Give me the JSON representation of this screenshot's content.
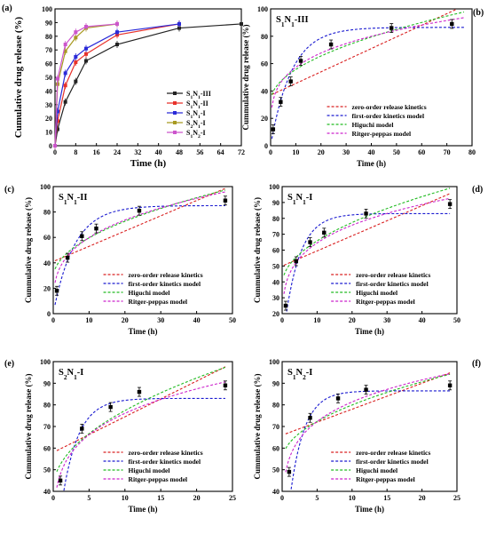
{
  "chart_data": [
    {
      "panel": "(a)",
      "type": "line",
      "title": "",
      "xlabel": "Time (h)",
      "ylabel": "Cumulative drug release (%)",
      "xlim": [
        0,
        72
      ],
      "ylim": [
        0,
        100
      ],
      "xticks": [
        0,
        8,
        16,
        24,
        32,
        40,
        48,
        56,
        64,
        72
      ],
      "yticks": [
        0,
        10,
        20,
        30,
        40,
        50,
        60,
        70,
        80,
        90,
        100
      ],
      "grid": false,
      "legend_position": "bottom-right",
      "series": [
        {
          "name": "S1N1-III",
          "name_main": "S",
          "name_sub1": "1",
          "name_mid": "N",
          "name_sub2": "1",
          "name_tail": "-III",
          "color": "#222222",
          "x": [
            0,
            1,
            4,
            8,
            12,
            24,
            48,
            72
          ],
          "y": [
            0,
            12,
            32,
            47,
            62,
            74,
            86,
            89
          ]
        },
        {
          "name": "S1N1-II",
          "name_main": "S",
          "name_sub1": "1",
          "name_mid": "N",
          "name_sub2": "1",
          "name_tail": "-II",
          "color": "#e8322b",
          "x": [
            0,
            1,
            4,
            8,
            12,
            24,
            48
          ],
          "y": [
            0,
            18,
            44,
            61,
            67,
            81,
            89
          ]
        },
        {
          "name": "S1N1-I",
          "name_main": "S",
          "name_sub1": "1",
          "name_mid": "N",
          "name_sub2": "1",
          "name_tail": "-I",
          "color": "#2a2ad8",
          "x": [
            0,
            1,
            4,
            8,
            12,
            24,
            48
          ],
          "y": [
            0,
            25,
            53,
            65,
            71,
            83,
            89
          ]
        },
        {
          "name": "S2N1-I",
          "name_main": "S",
          "name_sub1": "2",
          "name_mid": "N",
          "name_sub2": "1",
          "name_tail": "-I",
          "color": "#a89a22",
          "x": [
            0,
            1,
            4,
            8,
            12,
            24
          ],
          "y": [
            0,
            45,
            69,
            79,
            86,
            89
          ]
        },
        {
          "name": "S1N2-I",
          "name_main": "S",
          "name_sub1": "1",
          "name_mid": "N",
          "name_sub2": "2",
          "name_tail": "-I",
          "color": "#cc55cc",
          "x": [
            0,
            1,
            4,
            8,
            12,
            24
          ],
          "y": [
            0,
            49,
            74,
            83,
            87,
            89
          ]
        }
      ]
    },
    {
      "panel": "(b)",
      "type": "scatter",
      "title": "S1N1-III",
      "title_main": "S",
      "title_sub1": "1",
      "title_mid": "N",
      "title_sub2": "1",
      "title_tail": "-III",
      "xlabel": "Time (h)",
      "ylabel": "Cummulative drug release (%)",
      "xlim": [
        0,
        80
      ],
      "ylim": [
        0,
        100
      ],
      "xticks": [
        0,
        10,
        20,
        30,
        40,
        50,
        60,
        70,
        80
      ],
      "yticks": [
        0,
        20,
        40,
        60,
        80,
        100
      ],
      "legend_position": "bottom-right",
      "points": {
        "x": [
          1,
          4,
          8,
          12,
          24,
          48,
          72
        ],
        "y": [
          12,
          32,
          47,
          62,
          74,
          86,
          89
        ]
      },
      "fits": [
        {
          "name": "zero-order release kinetics",
          "color": "#d92020",
          "model": "zero",
          "params": [
            37,
            0.85
          ]
        },
        {
          "name": "first-order kinetics model",
          "color": "#1a1ad0",
          "model": "first",
          "params": [
            86.5,
            0.12
          ]
        },
        {
          "name": "Higuchi model",
          "color": "#22bb22",
          "model": "higuchi",
          "params": [
            32,
            7.5
          ]
        },
        {
          "name": "Ritger-peppas model",
          "color": "#cc22cc",
          "model": "peppas",
          "params": [
            33,
            0.24
          ]
        }
      ]
    },
    {
      "panel": "(c)",
      "type": "scatter",
      "title": "S1N1-II",
      "title_main": "S",
      "title_sub1": "1",
      "title_mid": "N",
      "title_sub2": "1",
      "title_tail": "-II",
      "xlabel": "Time (h)",
      "ylabel": "Cummulative drug release (%)",
      "xlim": [
        0,
        50
      ],
      "ylim": [
        0,
        100
      ],
      "xticks": [
        0,
        10,
        20,
        30,
        40,
        50
      ],
      "yticks": [
        0,
        20,
        40,
        60,
        80,
        100
      ],
      "legend_position": "bottom-right",
      "points": {
        "x": [
          1,
          4,
          8,
          12,
          24,
          48
        ],
        "y": [
          18,
          44,
          61,
          67,
          81,
          89
        ]
      },
      "fits": [
        {
          "name": "zero-order release kinetics",
          "color": "#d92020",
          "model": "zero",
          "params": [
            41,
            1.2
          ]
        },
        {
          "name": "first-order kinetics model",
          "color": "#1a1ad0",
          "model": "first",
          "params": [
            85,
            0.17
          ]
        },
        {
          "name": "Higuchi model",
          "color": "#22bb22",
          "model": "higuchi",
          "params": [
            28,
            10
          ]
        },
        {
          "name": "Ritger-peppas model",
          "color": "#cc22cc",
          "model": "peppas",
          "params": [
            30,
            0.3
          ]
        }
      ]
    },
    {
      "panel": "(d)",
      "type": "scatter",
      "title": "S1N1-I",
      "title_main": "S",
      "title_sub1": "1",
      "title_mid": "N",
      "title_sub2": "1",
      "title_tail": "-I",
      "xlabel": "Time (h)",
      "ylabel": "Cummulative drug release (%)",
      "xlim": [
        0,
        50
      ],
      "ylim": [
        20,
        100
      ],
      "xticks": [
        0,
        10,
        20,
        30,
        40,
        50
      ],
      "yticks": [
        20,
        30,
        40,
        50,
        60,
        70,
        80,
        90,
        100
      ],
      "legend_position": "bottom-right",
      "points": {
        "x": [
          1,
          4,
          8,
          12,
          24,
          48
        ],
        "y": [
          25,
          53,
          65,
          71,
          83,
          89
        ]
      },
      "fits": [
        {
          "name": "zero-order release kinetics",
          "color": "#d92020",
          "model": "zero",
          "params": [
            50,
            0.95
          ]
        },
        {
          "name": "first-order kinetics model",
          "color": "#1a1ad0",
          "model": "first",
          "params": [
            83,
            0.23
          ]
        },
        {
          "name": "Higuchi model",
          "color": "#22bb22",
          "model": "higuchi",
          "params": [
            38,
            8.8
          ]
        },
        {
          "name": "Ritger-peppas model",
          "color": "#cc22cc",
          "model": "peppas",
          "params": [
            38,
            0.23
          ]
        }
      ]
    },
    {
      "panel": "(e)",
      "type": "scatter",
      "title": "S2N1-I",
      "title_main": "S",
      "title_sub1": "2",
      "title_mid": "N",
      "title_sub2": "1",
      "title_tail": "-I",
      "xlabel": "Time (h)",
      "ylabel": "Cummulative drug release (%)",
      "xlim": [
        0,
        25
      ],
      "ylim": [
        40,
        100
      ],
      "xticks": [
        0,
        5,
        10,
        15,
        20,
        25
      ],
      "yticks": [
        40,
        50,
        60,
        70,
        80,
        90,
        100
      ],
      "legend_position": "bottom-right",
      "points": {
        "x": [
          1,
          4,
          8,
          12,
          24
        ],
        "y": [
          45,
          69,
          79,
          86,
          89
        ]
      },
      "fits": [
        {
          "name": "zero-order release kinetics",
          "color": "#d92020",
          "model": "zero",
          "params": [
            58,
            1.65
          ]
        },
        {
          "name": "first-order kinetics model",
          "color": "#1a1ad0",
          "model": "first",
          "params": [
            83,
            0.45
          ]
        },
        {
          "name": "Higuchi model",
          "color": "#22bb22",
          "model": "higuchi",
          "params": [
            41,
            11.5
          ]
        },
        {
          "name": "Ritger-peppas model",
          "color": "#cc22cc",
          "model": "peppas",
          "params": [
            48,
            0.2
          ]
        }
      ]
    },
    {
      "panel": "(f)",
      "type": "scatter",
      "title": "S1N2-I",
      "title_main": "S",
      "title_sub1": "1",
      "title_mid": "N",
      "title_sub2": "2",
      "title_tail": "-I",
      "xlabel": "Time (h)",
      "ylabel": "Cummulative drug release (%)",
      "xlim": [
        0,
        25
      ],
      "ylim": [
        40,
        100
      ],
      "xticks": [
        0,
        5,
        10,
        15,
        20,
        25
      ],
      "yticks": [
        40,
        50,
        60,
        70,
        80,
        90,
        100
      ],
      "legend_position": "bottom-right",
      "points": {
        "x": [
          1,
          4,
          8,
          12,
          24
        ],
        "y": [
          49,
          74,
          83,
          87,
          89
        ]
      },
      "fits": [
        {
          "name": "zero-order release kinetics",
          "color": "#d92020",
          "model": "zero",
          "params": [
            66,
            1.2
          ]
        },
        {
          "name": "first-order kinetics model",
          "color": "#1a1ad0",
          "model": "first",
          "params": [
            86.5,
            0.5
          ]
        },
        {
          "name": "Higuchi model",
          "color": "#22bb22",
          "model": "higuchi",
          "params": [
            54,
            8.2
          ]
        },
        {
          "name": "Ritger-peppas model",
          "color": "#cc22cc",
          "model": "peppas",
          "params": [
            55,
            0.17
          ]
        }
      ]
    }
  ]
}
